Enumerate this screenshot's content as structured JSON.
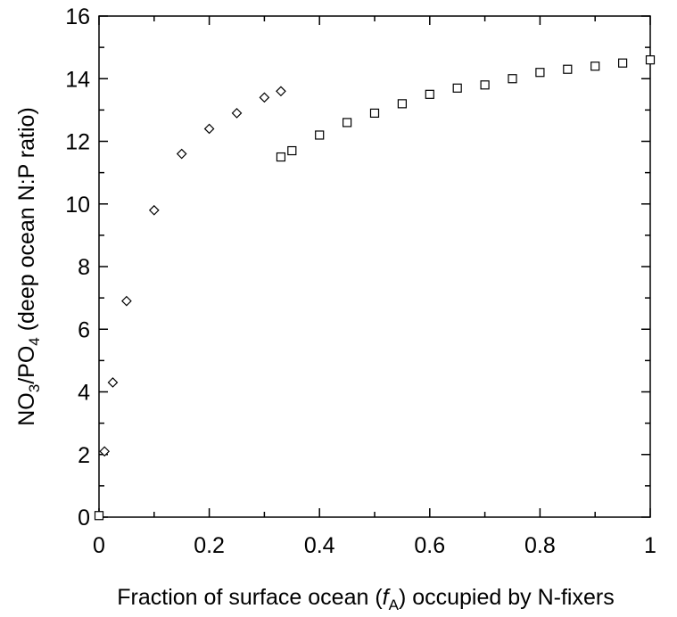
{
  "chart_data": {
    "type": "scatter",
    "xlabel": {
      "before": "Fraction of surface ocean (",
      "italic": "f",
      "sub": "A",
      "after": ") occupied by N-fixers"
    },
    "ylabel": {
      "p1": "NO",
      "s1": "3",
      "p2": "/PO",
      "s2": "4",
      "p3": " (deep ocean N:P ratio)"
    },
    "xlim": [
      0,
      1
    ],
    "ylim": [
      0,
      16
    ],
    "x_ticks": [
      "0",
      "0.2",
      "0.4",
      "0.6",
      "0.8",
      "1"
    ],
    "y_ticks": [
      "0",
      "2",
      "4",
      "6",
      "8",
      "10",
      "12",
      "14",
      "16"
    ],
    "grid": false,
    "series": [
      {
        "marker": "diamond",
        "points": [
          {
            "x": 0.01,
            "y": 2.1
          },
          {
            "x": 0.025,
            "y": 4.3
          },
          {
            "x": 0.05,
            "y": 6.9
          },
          {
            "x": 0.1,
            "y": 9.8
          },
          {
            "x": 0.15,
            "y": 11.6
          },
          {
            "x": 0.2,
            "y": 12.4
          },
          {
            "x": 0.25,
            "y": 12.9
          },
          {
            "x": 0.3,
            "y": 13.4
          },
          {
            "x": 0.33,
            "y": 13.6
          }
        ]
      },
      {
        "marker": "square",
        "points": [
          {
            "x": 0.0,
            "y": 0.05
          },
          {
            "x": 0.33,
            "y": 11.5
          },
          {
            "x": 0.35,
            "y": 11.7
          },
          {
            "x": 0.4,
            "y": 12.2
          },
          {
            "x": 0.45,
            "y": 12.6
          },
          {
            "x": 0.5,
            "y": 12.9
          },
          {
            "x": 0.55,
            "y": 13.2
          },
          {
            "x": 0.6,
            "y": 13.5
          },
          {
            "x": 0.65,
            "y": 13.7
          },
          {
            "x": 0.7,
            "y": 13.8
          },
          {
            "x": 0.75,
            "y": 14.0
          },
          {
            "x": 0.8,
            "y": 14.2
          },
          {
            "x": 0.85,
            "y": 14.3
          },
          {
            "x": 0.9,
            "y": 14.4
          },
          {
            "x": 0.95,
            "y": 14.5
          },
          {
            "x": 1.0,
            "y": 14.6
          }
        ]
      }
    ]
  }
}
